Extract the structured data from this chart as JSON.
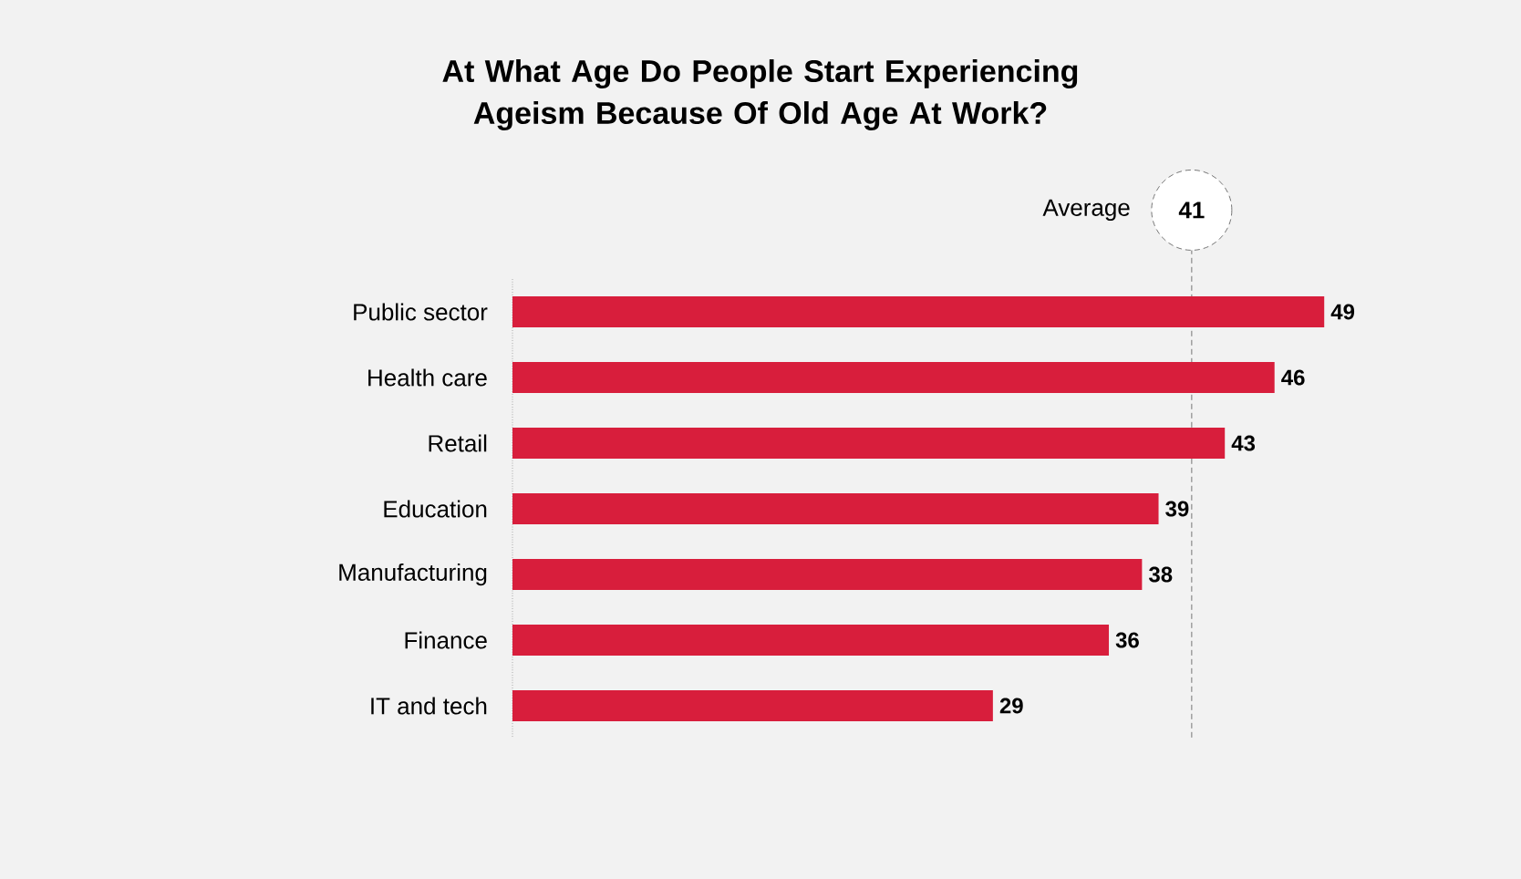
{
  "chart_data": {
    "type": "bar",
    "orientation": "horizontal",
    "title": "At What Age Do People Start Experiencing Ageism Because Of Old Age At Work?",
    "categories": [
      "Public sector",
      "Health care",
      "Retail",
      "Education",
      "Manufacturing",
      "Finance",
      "IT and tech"
    ],
    "values": [
      49,
      46,
      43,
      39,
      38,
      36,
      29
    ],
    "color": "#d81e3c",
    "tick_labels": "y",
    "data_labels": true,
    "annotations": [
      "41"
    ],
    "ref_lines": [
      {
        "axis": "x",
        "value": 41,
        "label": "Average",
        "line_style": "dashed",
        "color": "#555555"
      }
    ]
  }
}
